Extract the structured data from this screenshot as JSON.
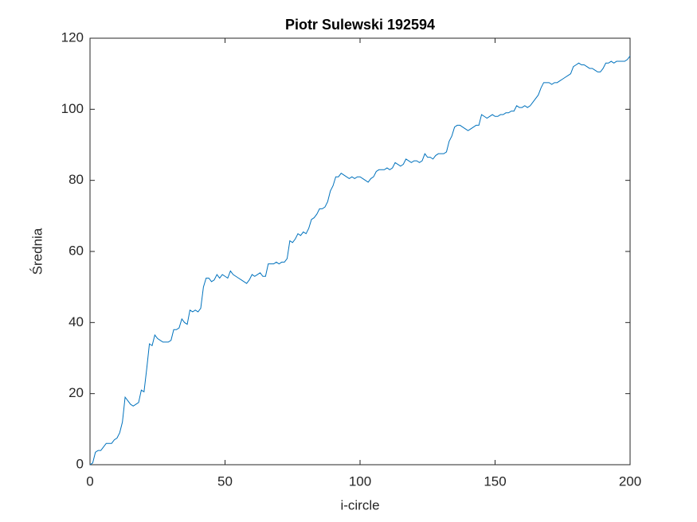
{
  "chart_data": {
    "type": "line",
    "title": "Piotr Sulewski 192594",
    "xlabel": "i-circle",
    "ylabel": "Średnia",
    "x": [
      0,
      1,
      2,
      3,
      4,
      5,
      6,
      7,
      8,
      9,
      10,
      11,
      12,
      13,
      14,
      15,
      16,
      17,
      18,
      19,
      20,
      21,
      22,
      23,
      24,
      25,
      26,
      27,
      28,
      29,
      30,
      31,
      32,
      33,
      34,
      35,
      36,
      37,
      38,
      39,
      40,
      41,
      42,
      43,
      44,
      45,
      46,
      47,
      48,
      49,
      50,
      51,
      52,
      53,
      54,
      55,
      56,
      57,
      58,
      59,
      60,
      61,
      62,
      63,
      64,
      65,
      66,
      67,
      68,
      69,
      70,
      71,
      72,
      73,
      74,
      75,
      76,
      77,
      78,
      79,
      80,
      81,
      82,
      83,
      84,
      85,
      86,
      87,
      88,
      89,
      90,
      91,
      92,
      93,
      94,
      95,
      96,
      97,
      98,
      99,
      100,
      101,
      102,
      103,
      104,
      105,
      106,
      107,
      108,
      109,
      110,
      111,
      112,
      113,
      114,
      115,
      116,
      117,
      118,
      119,
      120,
      121,
      122,
      123,
      124,
      125,
      126,
      127,
      128,
      129,
      130,
      131,
      132,
      133,
      134,
      135,
      136,
      137,
      138,
      139,
      140,
      141,
      142,
      143,
      144,
      145,
      146,
      147,
      148,
      149,
      150,
      151,
      152,
      153,
      154,
      155,
      156,
      157,
      158,
      159,
      160,
      161,
      162,
      163,
      164,
      165,
      166,
      167,
      168,
      169,
      170,
      171,
      172,
      173,
      174,
      175,
      176,
      177,
      178,
      179,
      180,
      181,
      182,
      183,
      184,
      185,
      186,
      187,
      188,
      189,
      190,
      191,
      192,
      193,
      194,
      195,
      196,
      197,
      198,
      199,
      200
    ],
    "series": [
      {
        "color": "#0072bd",
        "values": [
          0,
          0.5,
          3.5,
          4,
          4,
          5,
          6,
          6,
          6,
          7,
          7.5,
          9,
          12,
          19,
          18,
          17,
          16.5,
          17,
          17.5,
          21,
          20.5,
          27,
          34,
          33.5,
          36.5,
          35.5,
          35,
          34.5,
          34.5,
          34.5,
          35,
          38,
          38,
          38.5,
          41,
          40,
          39.5,
          43.5,
          43,
          43.5,
          43,
          44,
          50,
          52.5,
          52.5,
          51.5,
          52,
          53.5,
          52.5,
          53.5,
          53,
          52.5,
          54.5,
          53.5,
          53,
          52.5,
          52,
          51.5,
          51,
          52,
          53.5,
          53,
          53.5,
          54,
          53,
          53,
          56.5,
          56.5,
          56.5,
          57,
          56.5,
          57,
          57,
          58,
          63,
          62.5,
          63.5,
          65,
          64.5,
          65.5,
          65,
          66.5,
          69,
          69.5,
          70.5,
          72,
          72,
          72.5,
          74,
          77,
          78.5,
          81,
          81,
          82,
          81.5,
          81,
          80.5,
          81,
          80.5,
          81,
          81,
          80.5,
          80,
          79.5,
          80.5,
          81,
          82.5,
          83,
          83,
          83,
          83.5,
          83,
          83.5,
          85,
          84.5,
          84,
          84.5,
          86,
          85.5,
          85,
          85.5,
          85.5,
          85,
          85.5,
          87.5,
          86.5,
          86.5,
          86,
          87,
          87.5,
          87.5,
          87.5,
          88,
          91,
          92.5,
          95,
          95.5,
          95.5,
          95,
          94.5,
          94,
          94.5,
          95,
          95.5,
          95.5,
          98.5,
          98,
          97.5,
          98,
          98.5,
          98,
          98,
          98.5,
          98.5,
          99,
          99,
          99.5,
          99.5,
          101,
          100.5,
          100.5,
          101,
          100.5,
          101,
          102,
          103,
          104,
          106,
          107.5,
          107.5,
          107.5,
          107,
          107.5,
          107.5,
          108,
          108.5,
          109,
          109.5,
          110,
          112,
          112.5,
          113,
          112.5,
          112.5,
          112,
          111.5,
          111.5,
          111,
          110.5,
          110.5,
          111.5,
          113,
          113,
          113.5,
          113,
          113.5,
          113.5,
          113.5,
          113.5,
          114,
          115
        ]
      }
    ],
    "xlim": [
      0,
      200
    ],
    "xticks": [
      0,
      50,
      100,
      150,
      200
    ],
    "ylim": [
      0,
      120
    ],
    "yticks": [
      0,
      20,
      40,
      60,
      80,
      100,
      120
    ]
  }
}
